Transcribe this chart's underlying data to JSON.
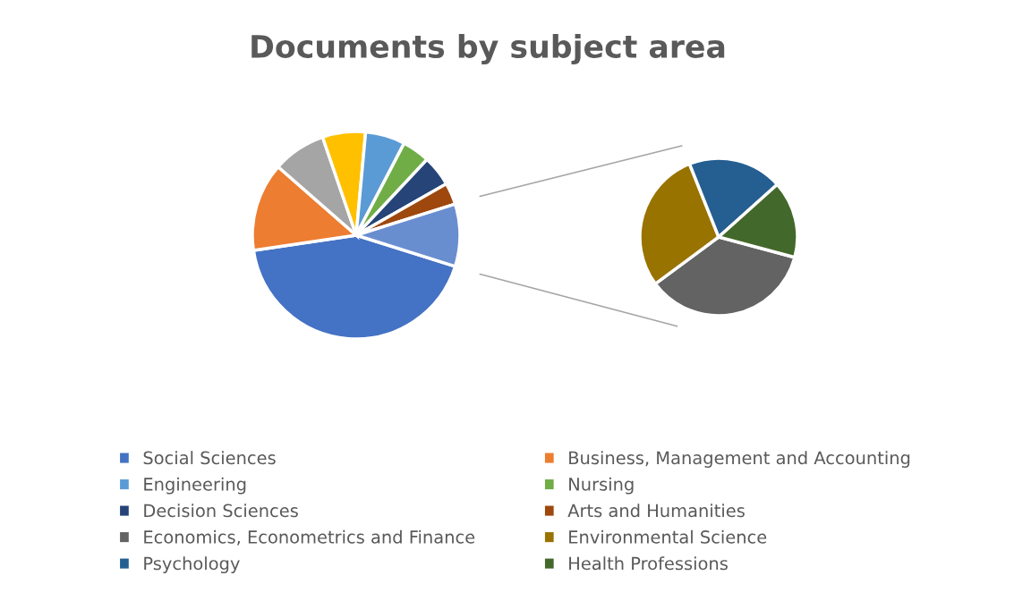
{
  "chart_data": [
    {
      "type": "pie",
      "title": "Documents by subject area",
      "legend": "bottom",
      "categories": [
        "Social Sciences",
        "Business, Management and Accounting",
        null,
        null,
        "Engineering",
        "Nursing",
        "Decision Sciences",
        "Arts and Humanities",
        null
      ],
      "values": [
        42.8,
        13.8,
        8.3,
        6.7,
        6.2,
        4.3,
        4.8,
        3.4,
        9.7
      ],
      "colors": [
        "#4472c4",
        "#ed7d31",
        "#a5a5a5",
        "#ffc000",
        "#5b9bd5",
        "#70ad47",
        "#264478",
        "#9e480e",
        "#698ed0"
      ]
    },
    {
      "type": "pie",
      "legend": "bottom",
      "categories": [
        "Economics, Econometrics and Finance",
        "Environmental Science",
        "Psychology",
        "Health Professions"
      ],
      "values": [
        35.7,
        29.1,
        19.4,
        15.8
      ],
      "colors": [
        "#636363",
        "#997300",
        "#255e91",
        "#43682b"
      ]
    }
  ]
}
